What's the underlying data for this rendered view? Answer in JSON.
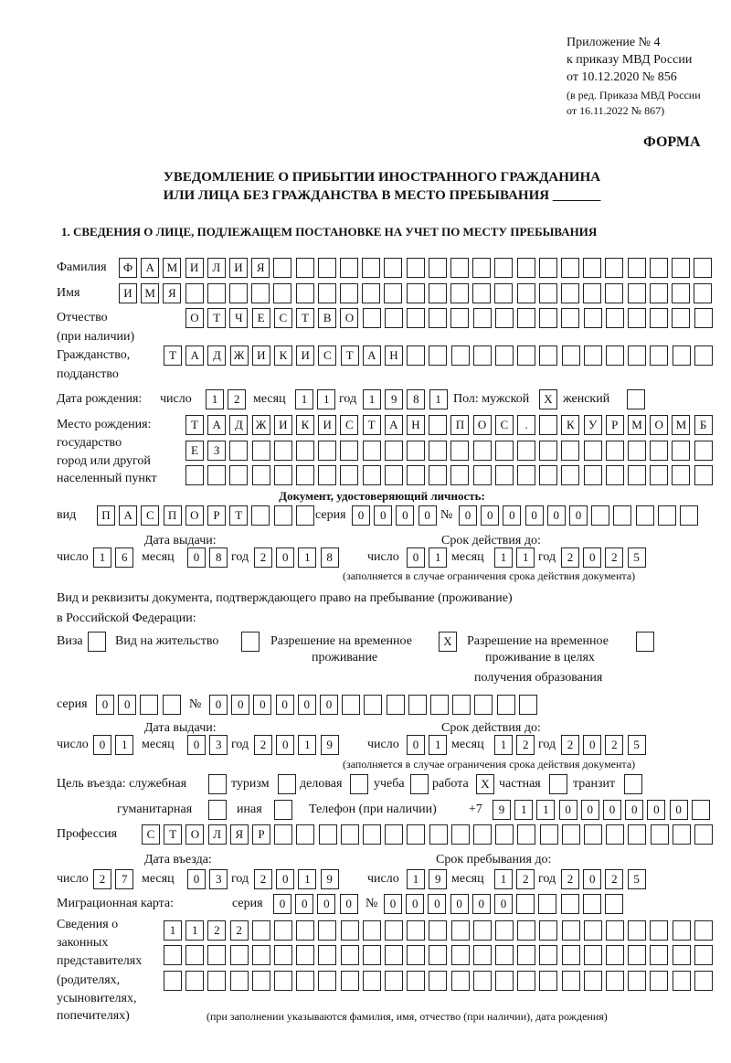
{
  "header": {
    "appendix": "Приложение № 4",
    "order": "к приказу МВД России",
    "order_date": "от 10.12.2020 № 856",
    "edition": "(в ред. Приказа МВД России",
    "edition_date": "от 16.11.2022 № 867)",
    "form_label": "ФОРМА",
    "title_line1": "УВЕДОМЛЕНИЕ О ПРИБЫТИИ ИНОСТРАННОГО ГРАЖДАНИНА",
    "title_line2": "ИЛИ ЛИЦА БЕЗ ГРАЖДАНСТВА В МЕСТО ПРЕБЫВАНИЯ _______",
    "section1": "1. СВЕДЕНИЯ О ЛИЦЕ, ПОДЛЕЖАЩЕМ ПОСТАНОВКЕ НА УЧЕТ ПО МЕСТУ ПРЕБЫВАНИЯ"
  },
  "labels": {
    "surname": "Фамилия",
    "name": "Имя",
    "patronymic": "Отчество",
    "patronymic_note": "(при наличии)",
    "citizenship": "Гражданство,",
    "citizenship2": "подданство",
    "birth_date": "Дата рождения:",
    "day": "число",
    "month": "месяц",
    "year": "год",
    "sex": "Пол: мужской",
    "female": "женский",
    "birthplace": "Место рождения:",
    "birthplace2": "государство",
    "birthplace3": "город или другой",
    "birthplace4": "населенный пункт",
    "id_doc": "Документ, удостоверяющий личность:",
    "kind": "вид",
    "series": "серия",
    "number": "№",
    "issue_date": "Дата выдачи:",
    "valid_until": "Срок действия до:",
    "validity_note": "(заполняется в случае ограничения срока действия документа)",
    "right_doc1": "Вид и реквизиты документа, подтверждающего право на пребывание (проживание)",
    "right_doc2": "в Российской Федерации:",
    "visa": "Виза",
    "residence_permit": "Вид на жительство",
    "temp_residence": "Разрешение на временное",
    "temp_residence2": "проживание",
    "temp_residence_edu": "Разрешение на временное",
    "temp_residence_edu2": "проживание в целях",
    "temp_residence_edu3": "получения образования",
    "purpose": "Цель въезда: служебная",
    "tourism": "туризм",
    "business": "деловая",
    "study": "учеба",
    "work": "работа",
    "private": "частная",
    "transit": "транзит",
    "humanitarian": "гуманитарная",
    "other": "иная",
    "phone": "Телефон (при наличии)",
    "phone_prefix": "+7",
    "profession": "Профессия",
    "entry_date": "Дата въезда:",
    "stay_until": "Срок пребывания до:",
    "migration_card": "Миграционная карта:",
    "reps1": "Сведения о",
    "reps2": "законных",
    "reps3": "представителях",
    "reps4": "(родителях,",
    "reps5": "усыновителях,",
    "reps6": "попечителях)",
    "reps_note": "(при заполнении указываются фамилия, имя, отчество (при наличии), дата рождения)"
  },
  "values": {
    "surname": [
      "Ф",
      "А",
      "М",
      "И",
      "Л",
      "И",
      "Я"
    ],
    "name": [
      "И",
      "М",
      "Я"
    ],
    "patronymic": [
      "О",
      "Т",
      "Ч",
      "Е",
      "С",
      "Т",
      "В",
      "О"
    ],
    "citizenship": [
      "Т",
      "А",
      "Д",
      "Ж",
      "И",
      "К",
      "И",
      "С",
      "Т",
      "А",
      "Н"
    ],
    "birth_day": [
      "1",
      "2"
    ],
    "birth_month": [
      "1",
      "1"
    ],
    "birth_year": [
      "1",
      "9",
      "8",
      "1"
    ],
    "sex_male": [
      "X"
    ],
    "sex_female": [
      ""
    ],
    "birthplace1": [
      "Т",
      "А",
      "Д",
      "Ж",
      "И",
      "К",
      "И",
      "С",
      "Т",
      "А",
      "Н",
      "",
      "П",
      "О",
      "С",
      ".",
      "",
      "К",
      "У",
      "Р",
      "М",
      "О",
      "М",
      "Б"
    ],
    "birthplace2": [
      "Е",
      "З"
    ],
    "birthplace3": [],
    "doc_kind": [
      "П",
      "А",
      "С",
      "П",
      "О",
      "Р",
      "Т"
    ],
    "doc_series": [
      "0",
      "0",
      "0",
      "0"
    ],
    "doc_number": [
      "0",
      "0",
      "0",
      "0",
      "0",
      "0"
    ],
    "doc_issue_day": [
      "1",
      "6"
    ],
    "doc_issue_month": [
      "0",
      "8"
    ],
    "doc_issue_year": [
      "2",
      "0",
      "1",
      "8"
    ],
    "doc_valid_day": [
      "0",
      "1"
    ],
    "doc_valid_month": [
      "1",
      "1"
    ],
    "doc_valid_year": [
      "2",
      "0",
      "2",
      "5"
    ],
    "visa": [
      ""
    ],
    "residence_permit": [
      ""
    ],
    "temp_residence": [
      "X"
    ],
    "temp_residence_edu": [
      ""
    ],
    "right_series": [
      "0",
      "0"
    ],
    "right_number": [
      "0",
      "0",
      "0",
      "0",
      "0",
      "0"
    ],
    "right_issue_day": [
      "0",
      "1"
    ],
    "right_issue_month": [
      "0",
      "3"
    ],
    "right_issue_year": [
      "2",
      "0",
      "1",
      "9"
    ],
    "right_valid_day": [
      "0",
      "1"
    ],
    "right_valid_month": [
      "1",
      "2"
    ],
    "right_valid_year": [
      "2",
      "0",
      "2",
      "5"
    ],
    "purpose_official": [
      ""
    ],
    "purpose_tourism": [
      ""
    ],
    "purpose_business": [
      ""
    ],
    "purpose_study": [
      ""
    ],
    "purpose_work": [
      "X"
    ],
    "purpose_private": [
      ""
    ],
    "purpose_transit": [
      ""
    ],
    "purpose_humanitarian": [
      ""
    ],
    "purpose_other": [
      ""
    ],
    "phone": [
      "9",
      "1",
      "1",
      "0",
      "0",
      "0",
      "0",
      "0",
      "0"
    ],
    "profession": [
      "С",
      "Т",
      "О",
      "Л",
      "Я",
      "Р"
    ],
    "entry_day": [
      "2",
      "7"
    ],
    "entry_month": [
      "0",
      "3"
    ],
    "entry_year": [
      "2",
      "0",
      "1",
      "9"
    ],
    "stay_day": [
      "1",
      "9"
    ],
    "stay_month": [
      "1",
      "2"
    ],
    "stay_year": [
      "2",
      "0",
      "2",
      "5"
    ],
    "mig_series": [
      "0",
      "0",
      "0",
      "0"
    ],
    "mig_number": [
      "0",
      "0",
      "0",
      "0",
      "0",
      "0"
    ],
    "reps1": [
      "1",
      "1",
      "2",
      "2"
    ],
    "reps2": [],
    "reps3": []
  }
}
